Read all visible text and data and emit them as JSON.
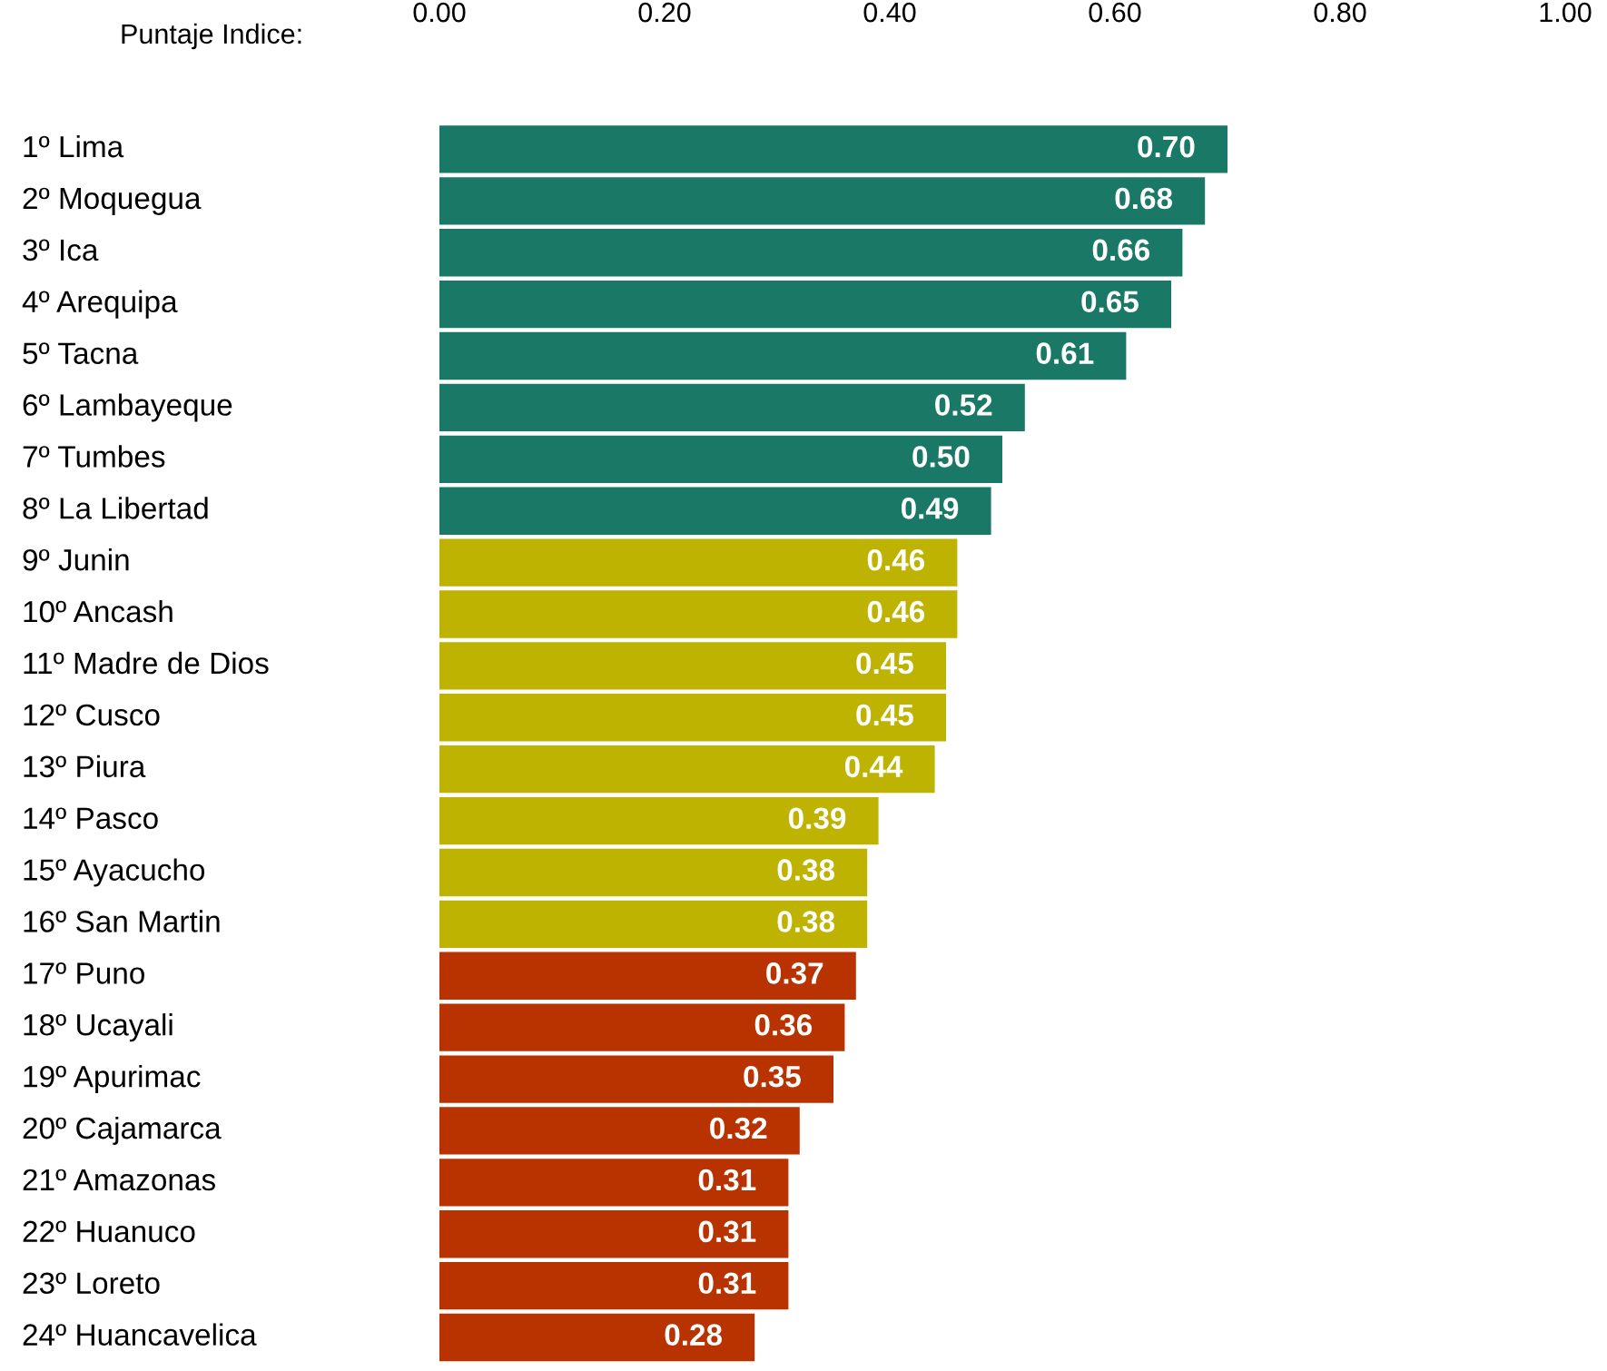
{
  "chart_data": {
    "type": "bar",
    "orientation": "horizontal",
    "xlabel": "Puntaje Indice:",
    "categories": [
      "1º Lima",
      "2º Moquegua",
      "3º Ica",
      "4º Arequipa",
      "5º Tacna",
      "6º Lambayeque",
      "7º Tumbes",
      "8º La Libertad",
      "9º Junin",
      "10º Ancash",
      "11º Madre de Dios",
      "12º Cusco",
      "13º Piura",
      "14º Pasco",
      "15º Ayacucho",
      "16º San Martin",
      "17º Puno",
      "18º Ucayali",
      "19º Apurimac",
      "20º Cajamarca",
      "21º Amazonas",
      "22º Huanuco",
      "23º Loreto",
      "24º Huancavelica"
    ],
    "values": [
      0.7,
      0.68,
      0.66,
      0.65,
      0.61,
      0.52,
      0.5,
      0.49,
      0.46,
      0.46,
      0.45,
      0.45,
      0.44,
      0.39,
      0.38,
      0.38,
      0.37,
      0.36,
      0.35,
      0.32,
      0.31,
      0.31,
      0.31,
      0.28
    ],
    "value_labels": [
      "0.70",
      "0.68",
      "0.66",
      "0.65",
      "0.61",
      "0.52",
      "0.50",
      "0.49",
      "0.46",
      "0.46",
      "0.45",
      "0.45",
      "0.44",
      "0.39",
      "0.38",
      "0.38",
      "0.37",
      "0.36",
      "0.35",
      "0.32",
      "0.31",
      "0.31",
      "0.31",
      "0.28"
    ],
    "colors": [
      "#1a7866",
      "#1a7866",
      "#1a7866",
      "#1a7866",
      "#1a7866",
      "#1a7866",
      "#1a7866",
      "#1a7866",
      "#bdb300",
      "#bdb300",
      "#bdb300",
      "#bdb300",
      "#bdb300",
      "#bdb300",
      "#bdb300",
      "#bdb300",
      "#b83300",
      "#b83300",
      "#b83300",
      "#b83300",
      "#b83300",
      "#b83300",
      "#b83300",
      "#b83300"
    ],
    "xlim": [
      0,
      1
    ],
    "xticks": [
      {
        "value": 0,
        "label": "0.00"
      },
      {
        "value": 0.2,
        "label": "0.20"
      },
      {
        "value": 0.4,
        "label": "0.40"
      },
      {
        "value": 0.6,
        "label": "0.60"
      },
      {
        "value": 0.8,
        "label": "0.80"
      },
      {
        "value": 1,
        "label": "1.00"
      }
    ],
    "grid": false,
    "legend": false
  }
}
